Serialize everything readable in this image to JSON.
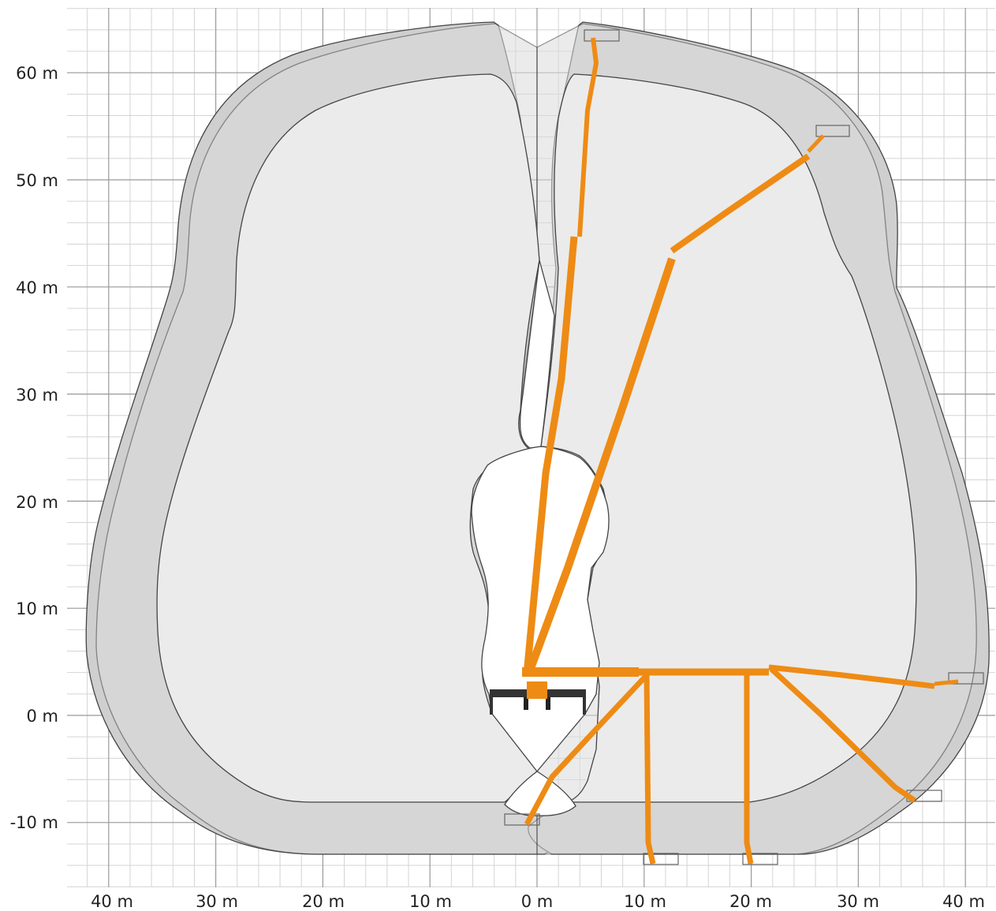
{
  "diagram": {
    "x_axis_labels": [
      "40 m",
      "30 m",
      "20 m",
      "10 m",
      "0 m",
      "10 m",
      "20 m",
      "30 m",
      "40 m"
    ],
    "y_axis_labels": [
      "60 m",
      "50 m",
      "40 m",
      "30 m",
      "20 m",
      "10 m",
      "0 m",
      "-10 m"
    ],
    "colors": {
      "outer_envelope": "#cfcfcf",
      "middle_envelope": "#dcdcdc",
      "inner_envelope": "#ebebeb",
      "boom": "#ee8b14",
      "truck": "#333333",
      "grid_major": "#999999",
      "grid_minor": "#d4d4d4"
    },
    "boom_positions": [
      "vertical",
      "steep",
      "folded-high",
      "horizontal",
      "horizontal-right",
      "hanging-10m",
      "hanging-20m",
      "diagonal-down-right",
      "below-ground"
    ]
  }
}
